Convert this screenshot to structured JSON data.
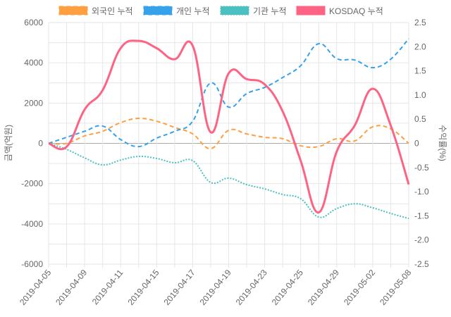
{
  "chart_data": {
    "type": "line",
    "categories": [
      "2019-04-05",
      "2019-04-08",
      "2019-04-09",
      "2019-04-10",
      "2019-04-11",
      "2019-04-12",
      "2019-04-15",
      "2019-04-16",
      "2019-04-17",
      "2019-04-18",
      "2019-04-19",
      "2019-04-22",
      "2019-04-23",
      "2019-04-24",
      "2019-04-25",
      "2019-04-26",
      "2019-04-29",
      "2019-04-30",
      "2019-05-02",
      "2019-05-03",
      "2019-05-08"
    ],
    "x_tick_labels": [
      "2019-04-05",
      "2019-04-09",
      "2019-04-11",
      "2019-04-15",
      "2019-04-17",
      "2019-04-19",
      "2019-04-23",
      "2019-04-25",
      "2019-04-29",
      "2019-05-02",
      "2019-05-08"
    ],
    "y_left": {
      "label": "금액(억원)",
      "ylim": [
        -6000,
        6000
      ],
      "ticks": [
        "-6000",
        "-4000",
        "-2000",
        "0",
        "2000",
        "4000",
        "6000"
      ]
    },
    "y_right": {
      "label": "수익률(%)",
      "ylim": [
        -2.5,
        2.5
      ],
      "ticks": [
        "-2.5",
        "-2.0",
        "-1.5",
        "-1.0",
        "-0.5",
        "0",
        "0.5",
        "1.0",
        "1.5",
        "2.0",
        "2.5"
      ]
    },
    "grid": true,
    "legend_position": "top",
    "series": [
      {
        "name": "외국인 누적",
        "axis": "left",
        "color": "#ff9f40",
        "dash": "dashed",
        "values": [
          0,
          0,
          370,
          600,
          1030,
          1240,
          1100,
          790,
          470,
          -260,
          650,
          470,
          300,
          230,
          -120,
          -160,
          230,
          120,
          820,
          720,
          0
        ]
      },
      {
        "name": "개인 누적",
        "axis": "left",
        "color": "#36a2eb",
        "dash": "dashed",
        "values": [
          0,
          300,
          600,
          860,
          190,
          -160,
          260,
          600,
          1100,
          3000,
          1800,
          2470,
          2780,
          3270,
          3860,
          4950,
          4210,
          4140,
          3760,
          4180,
          5200
        ]
      },
      {
        "name": "기관 누적",
        "axis": "left",
        "color": "#4bc0c0",
        "dash": "dotted",
        "values": [
          0,
          -300,
          -720,
          -1070,
          -830,
          -650,
          -750,
          -960,
          -860,
          -1940,
          -1730,
          -2050,
          -2260,
          -2540,
          -2750,
          -3660,
          -3240,
          -3000,
          -3200,
          -3480,
          -3730
        ]
      },
      {
        "name": "KOSDAQ 누적",
        "axis": "right",
        "color": "#ff6384",
        "dash": "solid",
        "values": [
          0,
          -0.07,
          0.7,
          1.1,
          1.97,
          2.12,
          1.97,
          1.74,
          2.02,
          0.23,
          1.45,
          1.33,
          1.22,
          0.66,
          -0.36,
          -1.43,
          -0.17,
          0.37,
          1.13,
          0.37,
          -0.85
        ]
      }
    ]
  }
}
